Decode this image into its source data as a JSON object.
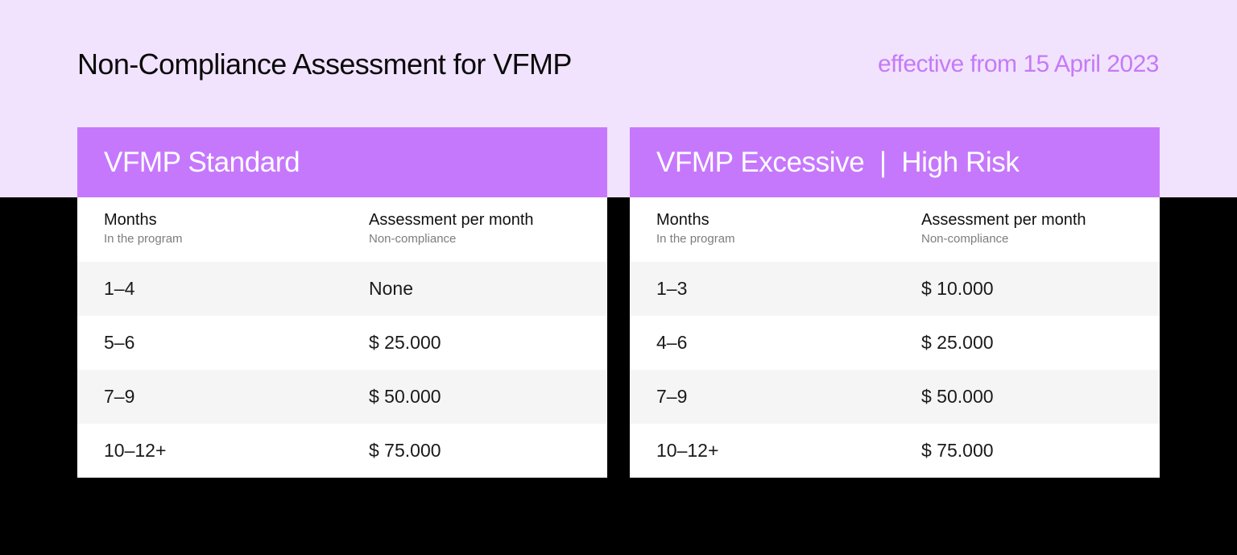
{
  "title": "Non-Compliance Assessment for VFMP",
  "effective": "effective from 15 April 2023",
  "colors": {
    "top_band": "#f1e3fd",
    "background": "#000000",
    "header": "#c678fd",
    "accent_text": "#c57af9",
    "row_alt": "#f5f5f5"
  },
  "tables": [
    {
      "name": "VFMP Standard",
      "col1_label": "Months",
      "col1_sub": "In the program",
      "col2_label": "Assessment per month",
      "col2_sub": "Non-compliance",
      "rows": [
        {
          "months": "1–4",
          "amount": "None"
        },
        {
          "months": "5–6",
          "amount": "$ 25.000"
        },
        {
          "months": "7–9",
          "amount": "$ 50.000"
        },
        {
          "months": "10–12+",
          "amount": "$ 75.000"
        }
      ]
    },
    {
      "name": "VFMP Excessive  |  High Risk",
      "col1_label": "Months",
      "col1_sub": "In the program",
      "col2_label": "Assessment per month",
      "col2_sub": "Non-compliance",
      "rows": [
        {
          "months": "1–3",
          "amount": "$ 10.000"
        },
        {
          "months": "4–6",
          "amount": "$ 25.000"
        },
        {
          "months": "7–9",
          "amount": "$ 50.000"
        },
        {
          "months": "10–12+",
          "amount": "$ 75.000"
        }
      ]
    }
  ]
}
